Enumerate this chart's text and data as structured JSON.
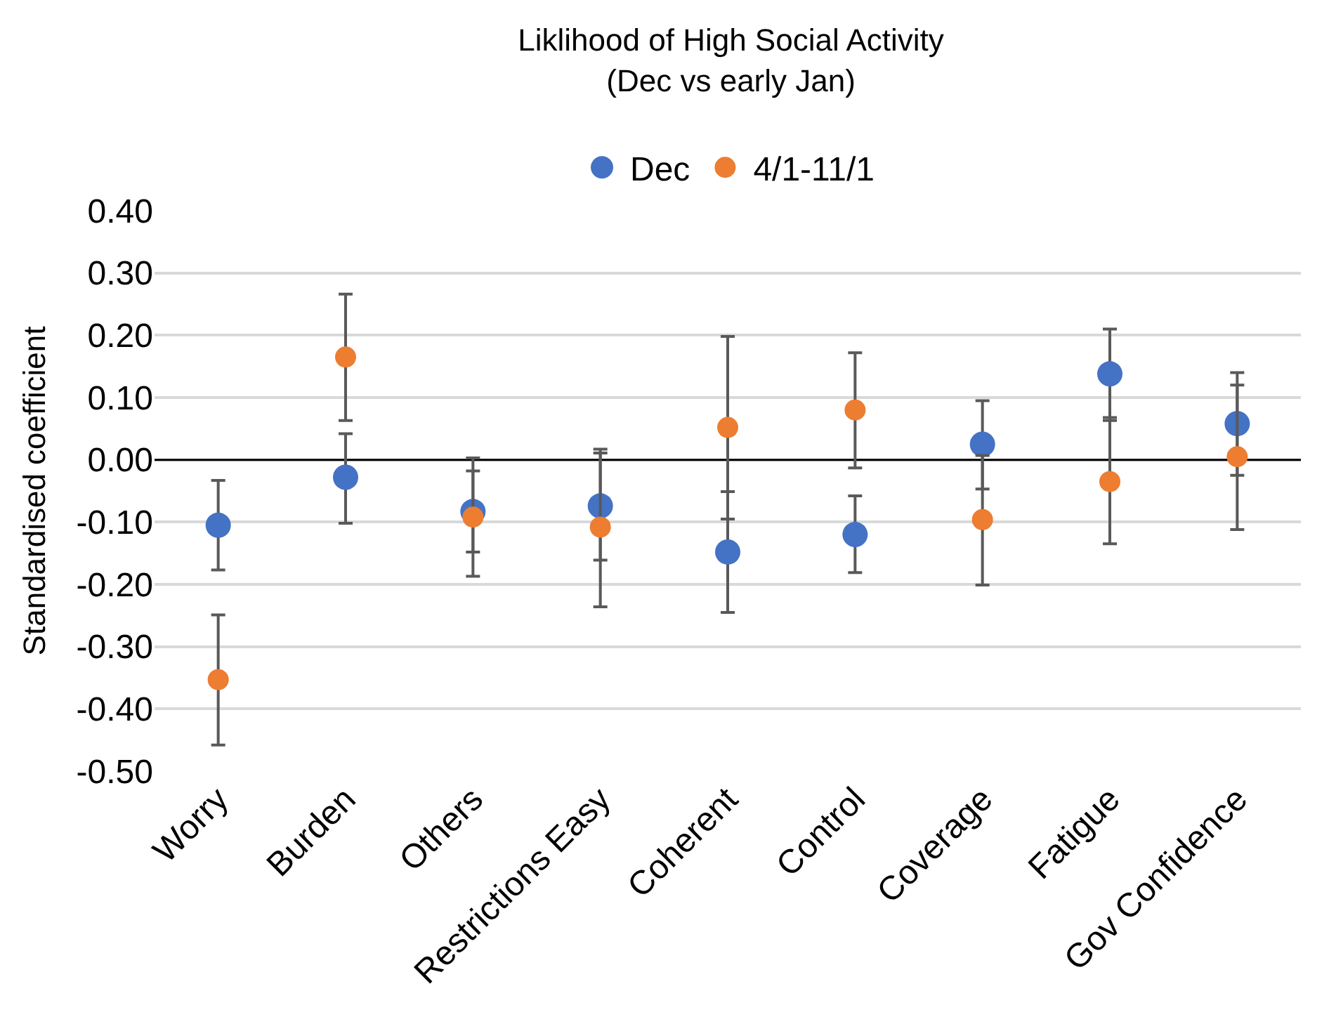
{
  "chart_data": {
    "type": "scatter",
    "title": "Liklihood of High Social Activity",
    "subtitle": "(Dec vs early Jan)",
    "ylabel": "Standardised coefficient",
    "categories": [
      "Worry",
      "Burden",
      "Others",
      "Restrictions Easy",
      "Coherent",
      "Control",
      "Coverage",
      "Fatigue",
      "Gov Confidence"
    ],
    "series": [
      {
        "name": "Dec",
        "color": "#4472c4",
        "values": [
          -0.105,
          -0.028,
          -0.083,
          -0.074,
          -0.148,
          -0.12,
          0.025,
          0.138,
          0.058
        ],
        "errors": [
          [
            -0.177,
            -0.033
          ],
          [
            -0.102,
            0.042
          ],
          [
            -0.148,
            -0.018
          ],
          [
            -0.161,
            0.017
          ],
          [
            -0.245,
            -0.051
          ],
          [
            -0.181,
            -0.058
          ],
          [
            -0.047,
            0.095
          ],
          [
            0.063,
            0.21
          ],
          [
            -0.025,
            0.14
          ]
        ]
      },
      {
        "name": "4/1-11/1",
        "color": "#ed7d31",
        "values": [
          -0.353,
          0.165,
          -0.092,
          -0.108,
          0.052,
          0.08,
          -0.096,
          -0.035,
          0.005
        ],
        "errors": [
          [
            -0.458,
            -0.249
          ],
          [
            0.063,
            0.266
          ],
          [
            -0.187,
            0.003
          ],
          [
            -0.236,
            0.011
          ],
          [
            -0.095,
            0.198
          ],
          [
            -0.013,
            0.172
          ],
          [
            -0.201,
            0.007
          ],
          [
            -0.135,
            0.068
          ],
          [
            -0.112,
            0.12
          ]
        ]
      }
    ],
    "ylim": [
      -0.5,
      0.4
    ],
    "yticks": [
      {
        "value": -0.5,
        "label": "-0.50"
      },
      {
        "value": -0.4,
        "label": "-0.40"
      },
      {
        "value": -0.3,
        "label": "-0.30"
      },
      {
        "value": -0.2,
        "label": "-0.20"
      },
      {
        "value": -0.1,
        "label": "-0.10"
      },
      {
        "value": 0,
        "label": "0.00"
      },
      {
        "value": 0.1,
        "label": "0.10"
      },
      {
        "value": 0.2,
        "label": "0.20"
      },
      {
        "value": 0.3,
        "label": "0.30"
      },
      {
        "value": 0.4,
        "label": "0.40"
      }
    ],
    "ref_lines": [
      {
        "axis": "y",
        "value": 0,
        "color": "#000000"
      }
    ],
    "grid": "y",
    "legend": "top",
    "marker": "circle"
  }
}
